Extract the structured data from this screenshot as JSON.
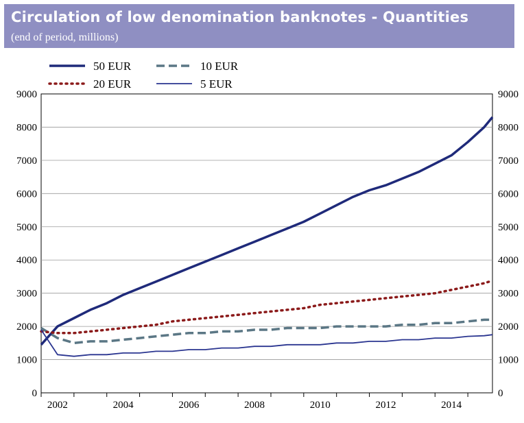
{
  "header": {
    "title": "Circulation of low denomination banknotes - Quantities",
    "subtitle": "(end of period, millions)"
  },
  "chart_data": {
    "type": "line",
    "title": "Circulation of low denomination banknotes - Quantities",
    "subtitle": "(end of period, millions)",
    "xlabel": "",
    "ylabel": "",
    "x_ticks": [
      "2002",
      "2004",
      "2006",
      "2008",
      "2010",
      "2012",
      "2014"
    ],
    "xlim": [
      2002,
      2015.75
    ],
    "ylim": [
      0,
      9000
    ],
    "y_ticks": [
      "0",
      "1000",
      "2000",
      "3000",
      "4000",
      "5000",
      "6000",
      "7000",
      "8000",
      "9000"
    ],
    "y_ticks_right": [
      "0",
      "1000",
      "2000",
      "3000",
      "4000",
      "5000",
      "6000",
      "7000",
      "8000",
      "9000"
    ],
    "grid": true,
    "legend_position": "top-left",
    "x": [
      2002.0,
      2002.5,
      2003.0,
      2003.5,
      2004.0,
      2004.5,
      2005.0,
      2005.5,
      2006.0,
      2006.5,
      2007.0,
      2007.5,
      2008.0,
      2008.5,
      2009.0,
      2009.5,
      2010.0,
      2010.5,
      2011.0,
      2011.5,
      2012.0,
      2012.5,
      2013.0,
      2013.5,
      2014.0,
      2014.5,
      2015.0,
      2015.5,
      2015.75
    ],
    "series": [
      {
        "name": "50 EUR",
        "color": "#1f2a7a",
        "style": "solid-thick",
        "values": [
          1450,
          2000,
          2250,
          2500,
          2700,
          2950,
          3150,
          3350,
          3550,
          3750,
          3950,
          4150,
          4350,
          4550,
          4750,
          4950,
          5150,
          5400,
          5650,
          5900,
          6100,
          6250,
          6450,
          6650,
          6900,
          7150,
          7550,
          8000,
          8300
        ]
      },
      {
        "name": "10 EUR",
        "color": "#5b7785",
        "style": "dashed",
        "values": [
          1950,
          1650,
          1500,
          1550,
          1550,
          1600,
          1650,
          1700,
          1750,
          1800,
          1800,
          1850,
          1850,
          1900,
          1900,
          1950,
          1950,
          1950,
          2000,
          2000,
          2000,
          2000,
          2050,
          2050,
          2100,
          2100,
          2150,
          2200,
          2200
        ]
      },
      {
        "name": "20 EUR",
        "color": "#8b1a1a",
        "style": "dotted",
        "values": [
          1850,
          1800,
          1800,
          1850,
          1900,
          1950,
          2000,
          2050,
          2150,
          2200,
          2250,
          2300,
          2350,
          2400,
          2450,
          2500,
          2550,
          2650,
          2700,
          2750,
          2800,
          2850,
          2900,
          2950,
          3000,
          3100,
          3200,
          3300,
          3380
        ]
      },
      {
        "name": "5 EUR",
        "color": "#2a3590",
        "style": "solid-thin",
        "values": [
          1900,
          1150,
          1100,
          1150,
          1150,
          1200,
          1200,
          1250,
          1250,
          1300,
          1300,
          1350,
          1350,
          1400,
          1400,
          1450,
          1450,
          1450,
          1500,
          1500,
          1550,
          1550,
          1600,
          1600,
          1650,
          1650,
          1700,
          1720,
          1750
        ]
      }
    ]
  }
}
